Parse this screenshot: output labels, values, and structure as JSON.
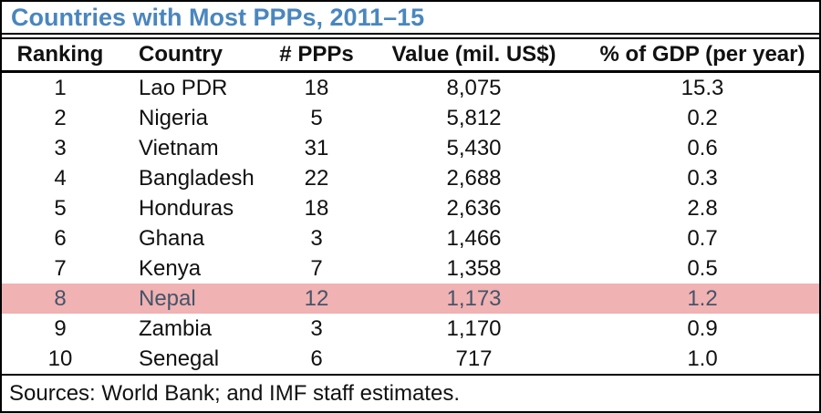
{
  "title": "Countries with Most PPPs, 2011–15",
  "columns": [
    "Ranking",
    "Country",
    "# PPPs",
    "Value (mil. US$)",
    "% of GDP (per year)"
  ],
  "rows": [
    {
      "ranking": "1",
      "country": "Lao PDR",
      "ppps": "18",
      "value": "8,075",
      "gdp": "15.3",
      "highlight": false
    },
    {
      "ranking": "2",
      "country": "Nigeria",
      "ppps": "5",
      "value": "5,812",
      "gdp": "0.2",
      "highlight": false
    },
    {
      "ranking": "3",
      "country": "Vietnam",
      "ppps": "31",
      "value": "5,430",
      "gdp": "0.6",
      "highlight": false
    },
    {
      "ranking": "4",
      "country": "Bangladesh",
      "ppps": "22",
      "value": "2,688",
      "gdp": "0.3",
      "highlight": false
    },
    {
      "ranking": "5",
      "country": "Honduras",
      "ppps": "18",
      "value": "2,636",
      "gdp": "2.8",
      "highlight": false
    },
    {
      "ranking": "6",
      "country": "Ghana",
      "ppps": "3",
      "value": "1,466",
      "gdp": "0.7",
      "highlight": false
    },
    {
      "ranking": "7",
      "country": "Kenya",
      "ppps": "7",
      "value": "1,358",
      "gdp": "0.5",
      "highlight": false
    },
    {
      "ranking": "8",
      "country": "Nepal",
      "ppps": "12",
      "value": "1,173",
      "gdp": "1.2",
      "highlight": true
    },
    {
      "ranking": "9",
      "country": "Zambia",
      "ppps": "3",
      "value": "1,170",
      "gdp": "0.9",
      "highlight": false
    },
    {
      "ranking": "10",
      "country": "Senegal",
      "ppps": "6",
      "value": "717",
      "gdp": "1.0",
      "highlight": false
    }
  ],
  "source_note": "Sources: World Bank; and IMF staff estimates.",
  "colors": {
    "title_blue": "#4a86be",
    "highlight_bg": "#f0b2b2",
    "highlight_text": "#44546a",
    "border_black": "#000000"
  },
  "chart_data": {
    "type": "table",
    "title": "Countries with Most PPPs, 2011–15",
    "columns": [
      "Ranking",
      "Country",
      "# PPPs",
      "Value (mil. US$)",
      "% of GDP (per year)"
    ],
    "rows": [
      [
        1,
        "Lao PDR",
        18,
        8075,
        15.3
      ],
      [
        2,
        "Nigeria",
        5,
        5812,
        0.2
      ],
      [
        3,
        "Vietnam",
        31,
        5430,
        0.6
      ],
      [
        4,
        "Bangladesh",
        22,
        2688,
        0.3
      ],
      [
        5,
        "Honduras",
        18,
        2636,
        2.8
      ],
      [
        6,
        "Ghana",
        3,
        1466,
        0.7
      ],
      [
        7,
        "Kenya",
        7,
        1358,
        0.5
      ],
      [
        8,
        "Nepal",
        12,
        1173,
        1.2
      ],
      [
        9,
        "Zambia",
        3,
        1170,
        0.9
      ],
      [
        10,
        "Senegal",
        6,
        717,
        1.0
      ]
    ],
    "highlighted_row": "Nepal",
    "source": "Sources: World Bank; and IMF staff estimates."
  }
}
